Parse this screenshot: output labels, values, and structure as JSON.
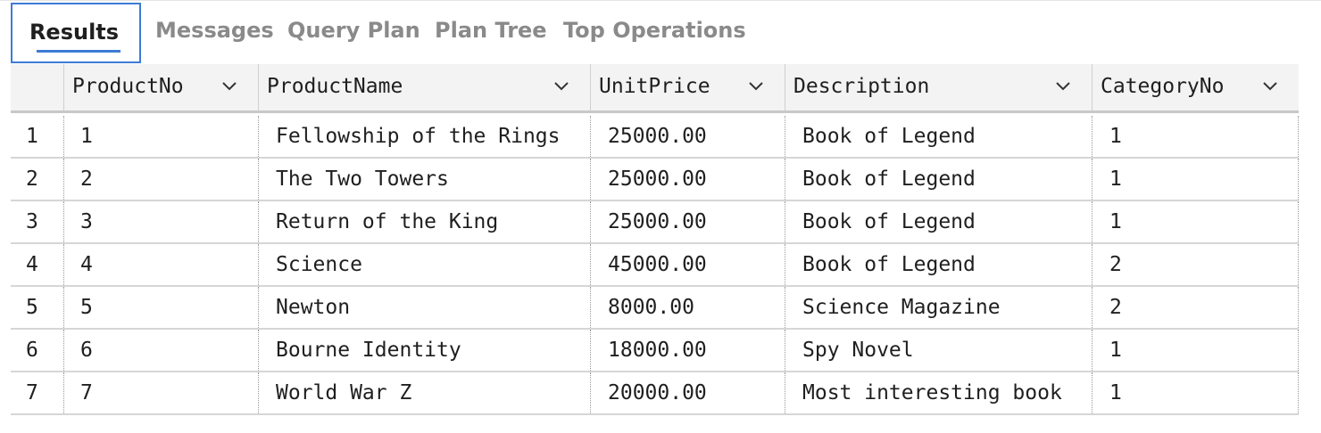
{
  "tabs": [
    {
      "label": "Results",
      "active": true
    },
    {
      "label": "Messages",
      "active": false
    },
    {
      "label": "Query Plan",
      "active": false
    },
    {
      "label": "Plan Tree",
      "active": false
    },
    {
      "label": "Top Operations",
      "active": false
    }
  ],
  "columns": [
    "ProductNo",
    "ProductName",
    "UnitPrice",
    "Description",
    "CategoryNo"
  ],
  "rows": [
    {
      "n": "1",
      "ProductNo": "1",
      "ProductName": "Fellowship of the Rings",
      "UnitPrice": "25000.00",
      "Description": "Book of Legend",
      "CategoryNo": "1"
    },
    {
      "n": "2",
      "ProductNo": "2",
      "ProductName": "The Two Towers",
      "UnitPrice": "25000.00",
      "Description": "Book of Legend",
      "CategoryNo": "1"
    },
    {
      "n": "3",
      "ProductNo": "3",
      "ProductName": "Return of the King",
      "UnitPrice": "25000.00",
      "Description": "Book of Legend",
      "CategoryNo": "1"
    },
    {
      "n": "4",
      "ProductNo": "4",
      "ProductName": "Science",
      "UnitPrice": "45000.00",
      "Description": "Book of Legend",
      "CategoryNo": "2"
    },
    {
      "n": "5",
      "ProductNo": "5",
      "ProductName": "Newton",
      "UnitPrice": "8000.00",
      "Description": "Science Magazine",
      "CategoryNo": "2"
    },
    {
      "n": "6",
      "ProductNo": "6",
      "ProductName": "Bourne Identity",
      "UnitPrice": "18000.00",
      "Description": "Spy Novel",
      "CategoryNo": "1"
    },
    {
      "n": "7",
      "ProductNo": "7",
      "ProductName": "World War Z",
      "UnitPrice": "20000.00",
      "Description": "Most interesting book",
      "CategoryNo": "1"
    }
  ],
  "colors": {
    "accent": "#3d7bd6",
    "inactive_tab": "#8a8a8a",
    "header_bg": "#f3f3f3"
  },
  "icons": {
    "sort": "chevron-down-icon"
  }
}
